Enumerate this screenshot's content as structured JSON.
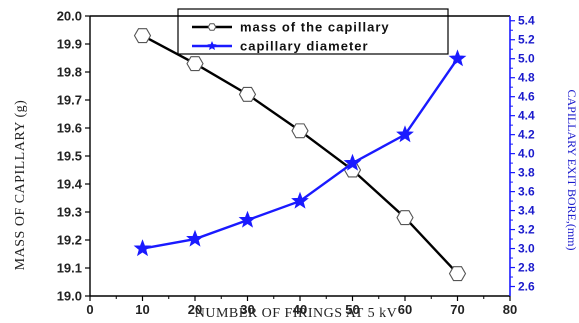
{
  "chart_data": {
    "type": "line",
    "x": [
      10,
      20,
      30,
      40,
      50,
      60,
      70
    ],
    "xlabel": "NUMBER OF FIRINGS AT 5 kV",
    "ylabel": "MASS OF CAPILLARY (g)",
    "y2label": "CAPILLARY EXIT BORE,(mm)",
    "xlim": [
      0,
      80
    ],
    "ylim": [
      19.0,
      20.0
    ],
    "y2lim": [
      2.5,
      5.45
    ],
    "xticks": [
      "0",
      "10",
      "20",
      "30",
      "40",
      "50",
      "60",
      "70",
      "80"
    ],
    "yticks": [
      "19.0",
      "19.1",
      "19.2",
      "19.3",
      "19.4",
      "19.5",
      "19.6",
      "19.7",
      "19.8",
      "19.9",
      "20.0"
    ],
    "y2ticks": [
      "2.6",
      "2.8",
      "3.0",
      "3.2",
      "3.4",
      "3.6",
      "3.8",
      "4.0",
      "4.2",
      "4.4",
      "4.6",
      "4.8",
      "5.0",
      "5.2",
      "5.4"
    ],
    "grid": false,
    "legend_position": "top-center",
    "series": [
      {
        "name": "mass of the capillary",
        "axis": "left",
        "values": [
          19.93,
          19.83,
          19.72,
          19.59,
          19.45,
          19.28,
          19.08
        ],
        "color": "#000000",
        "marker": "hexagon-open"
      },
      {
        "name": "capillary diameter",
        "axis": "right",
        "values": [
          3.0,
          3.1,
          3.3,
          3.5,
          3.9,
          4.2,
          5.0
        ],
        "color": "#1a1aff",
        "marker": "star"
      }
    ]
  }
}
